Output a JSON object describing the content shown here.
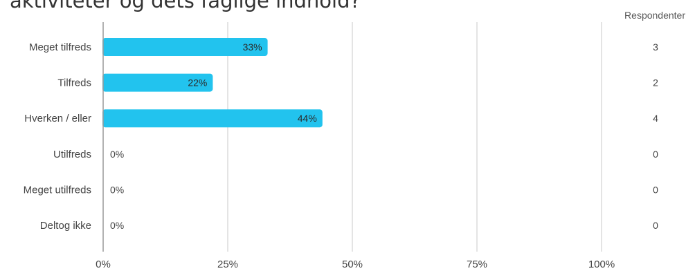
{
  "title": "aktiviteter og dets faglige indhold?",
  "respondents_header": "Respondenter",
  "colors": {
    "bar": "#22c3ee",
    "grid": "#c8c8c8",
    "axis": "#999999",
    "text": "#444444"
  },
  "chart_data": {
    "type": "bar",
    "orientation": "horizontal",
    "categories": [
      "Meget tilfreds",
      "Tilfreds",
      "Hverken / eller",
      "Utilfreds",
      "Meget utilfreds",
      "Deltog ikke"
    ],
    "values": [
      33,
      22,
      44,
      0,
      0,
      0
    ],
    "value_labels": [
      "33%",
      "22%",
      "44%",
      "0%",
      "0%",
      "0%"
    ],
    "respondents": [
      3,
      2,
      4,
      0,
      0,
      0
    ],
    "xlim": [
      0,
      100
    ],
    "x_ticks": [
      0,
      25,
      50,
      75,
      100
    ],
    "x_tick_labels": [
      "0%",
      "25%",
      "50%",
      "75%",
      "100%"
    ],
    "grid": true
  }
}
